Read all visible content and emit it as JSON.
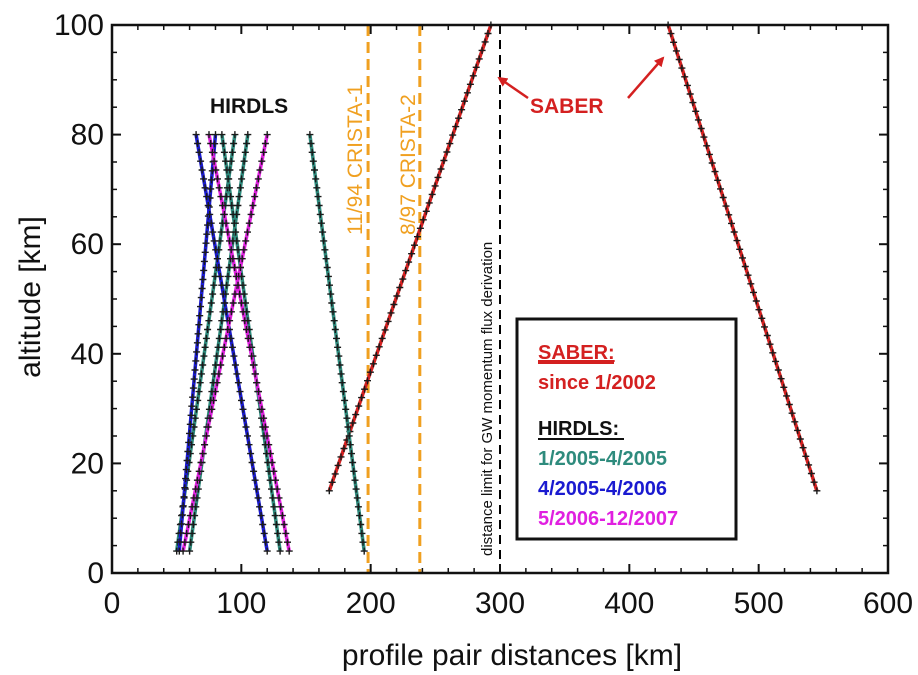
{
  "chart_data": {
    "type": "line",
    "xlabel": "profile pair distances [km]",
    "ylabel": "altitude  [km]",
    "xlim": [
      0,
      600
    ],
    "ylim": [
      0,
      100
    ],
    "xticks": [
      "0",
      "100",
      "200",
      "300",
      "400",
      "500",
      "600"
    ],
    "yticks": [
      "0",
      "20",
      "40",
      "60",
      "80",
      "100"
    ],
    "grid": false,
    "colors": {
      "saber": "#d42020",
      "hirdls_1": "#2e8b7d",
      "hirdls_2": "#1a1ad0",
      "hirdls_3": "#e020e0",
      "crista": "#f0a020",
      "limit": "#000000"
    },
    "series": [
      {
        "group": "saber",
        "color_key": "saber",
        "points": [
          [
            168,
            15
          ],
          [
            293,
            100
          ]
        ]
      },
      {
        "group": "saber",
        "color_key": "saber",
        "points": [
          [
            430,
            100
          ],
          [
            545,
            15
          ]
        ]
      },
      {
        "group": "hirdls",
        "color_key": "hirdls_1",
        "points": [
          [
            50,
            4
          ],
          [
            95,
            80
          ]
        ]
      },
      {
        "group": "hirdls",
        "color_key": "hirdls_1",
        "points": [
          [
            60,
            4
          ],
          [
            105,
            80
          ]
        ]
      },
      {
        "group": "hirdls",
        "color_key": "hirdls_1",
        "points": [
          [
            85,
            80
          ],
          [
            130,
            4
          ]
        ]
      },
      {
        "group": "hirdls",
        "color_key": "hirdls_1",
        "points": [
          [
            153,
            80
          ],
          [
            195,
            4
          ]
        ]
      },
      {
        "group": "hirdls",
        "color_key": "hirdls_2",
        "points": [
          [
            52,
            4
          ],
          [
            80,
            80
          ]
        ]
      },
      {
        "group": "hirdls",
        "color_key": "hirdls_2",
        "points": [
          [
            65,
            80
          ],
          [
            120,
            4
          ]
        ]
      },
      {
        "group": "hirdls",
        "color_key": "hirdls_3",
        "points": [
          [
            55,
            4
          ],
          [
            120,
            80
          ]
        ]
      },
      {
        "group": "hirdls",
        "color_key": "hirdls_3",
        "points": [
          [
            75,
            80
          ],
          [
            137,
            4
          ]
        ]
      }
    ],
    "vlines": [
      {
        "x": 198,
        "color_key": "crista",
        "style": "dashed",
        "label": "11/94  CRISTA-1"
      },
      {
        "x": 238,
        "color_key": "crista",
        "style": "dashed",
        "label": "8/97  CRISTA-2"
      },
      {
        "x": 300,
        "color_key": "limit",
        "style": "dashed",
        "label": "distance limit for GW momentum flux derivation"
      }
    ],
    "annotations": {
      "hirdls_label": "HIRDLS",
      "saber_label": "SABER"
    },
    "legend": {
      "placement": "bottom-right",
      "saber_title": "SABER:",
      "saber_period": "since 1/2002",
      "hirdls_title": "HIRDLS:",
      "entries": [
        {
          "label": "1/2005-4/2005",
          "color_key": "hirdls_1"
        },
        {
          "label": "4/2005-4/2006",
          "color_key": "hirdls_2"
        },
        {
          "label": "5/2006-12/2007",
          "color_key": "hirdls_3"
        }
      ]
    }
  }
}
